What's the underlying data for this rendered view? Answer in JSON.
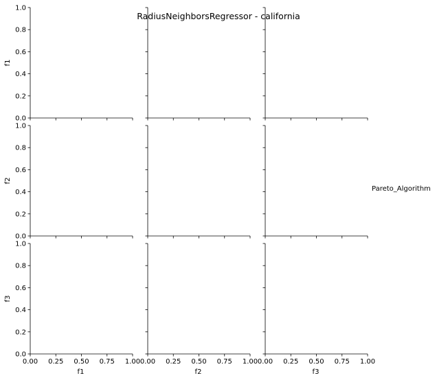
{
  "chart_data": {
    "type": "scatter",
    "title": "RadiusNeighborsRegressor - california",
    "legend_title": "Pareto_Algorithm",
    "legend_placement": "right",
    "grid": false,
    "variables": [
      "f1",
      "f2",
      "f3"
    ],
    "xlim": [
      0.0,
      1.0
    ],
    "ylim": [
      0.0,
      1.0
    ],
    "x_ticks": [
      0.0,
      0.25,
      0.5,
      0.75,
      1.0
    ],
    "x_tick_labels": [
      "0.00",
      "0.25",
      "0.50",
      "0.75",
      "1.00"
    ],
    "y_ticks": [
      0.0,
      0.2,
      0.4,
      0.6,
      0.8,
      1.0
    ],
    "y_tick_labels": [
      "0.0",
      "0.2",
      "0.4",
      "0.6",
      "0.8",
      "1.0"
    ],
    "series": []
  }
}
